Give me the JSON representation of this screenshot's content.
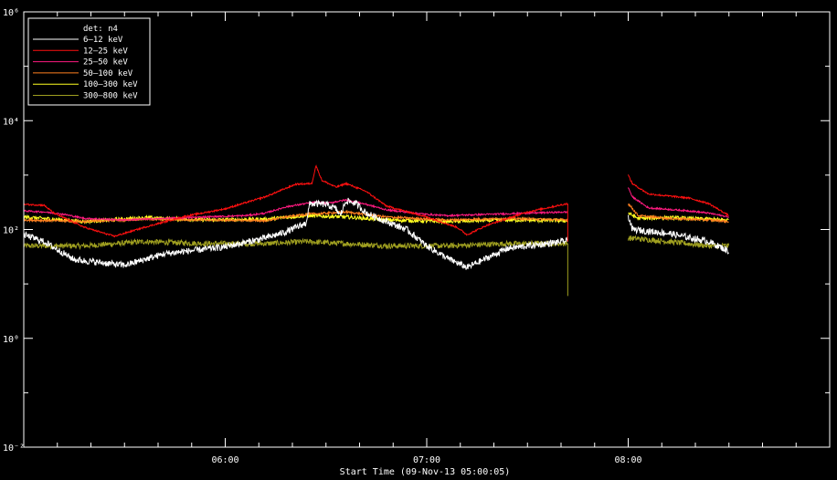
{
  "chart_data": {
    "type": "line",
    "title": "",
    "xlabel": "Start Time (09-Nov-13 05:00:05)",
    "ylabel": "",
    "x_unit": "hours since 05:00 UT",
    "xlim": [
      0,
      4
    ],
    "ylim": [
      0.01,
      1000000
    ],
    "y_scale": "log",
    "grid": false,
    "legend_placement": "top-left",
    "legend_title": "det: n4",
    "x_ticks": [
      {
        "value": 1,
        "label": "06:00"
      },
      {
        "value": 2,
        "label": "07:00"
      },
      {
        "value": 3,
        "label": "08:00"
      }
    ],
    "y_ticks": [
      {
        "value": 0.01,
        "label": "10⁻²"
      },
      {
        "value": 1,
        "label": "10⁰"
      },
      {
        "value": 100,
        "label": "10²"
      },
      {
        "value": 10000,
        "label": "10⁴"
      },
      {
        "value": 1000000,
        "label": "10⁶"
      }
    ],
    "series": [
      {
        "name": "6–12 keV",
        "color": "#ffffff",
        "noise": 0.06,
        "points": [
          [
            0,
            80
          ],
          [
            0.1,
            60
          ],
          [
            0.25,
            28
          ],
          [
            0.5,
            22
          ],
          [
            0.7,
            36
          ],
          [
            1.0,
            48
          ],
          [
            1.2,
            70
          ],
          [
            1.3,
            90
          ],
          [
            1.4,
            130
          ],
          [
            1.42,
            300
          ],
          [
            1.5,
            290
          ],
          [
            1.55,
            240
          ],
          [
            1.57,
            180
          ],
          [
            1.6,
            340
          ],
          [
            1.65,
            300
          ],
          [
            1.7,
            200
          ],
          [
            1.8,
            140
          ],
          [
            1.9,
            100
          ],
          [
            2.0,
            50
          ],
          [
            2.1,
            30
          ],
          [
            2.2,
            20
          ],
          [
            2.3,
            30
          ],
          [
            2.4,
            45
          ],
          [
            2.6,
            55
          ],
          [
            2.7,
            62
          ]
        ],
        "gap_points": [
          [
            3.0,
            180
          ],
          [
            3.02,
            100
          ],
          [
            3.2,
            85
          ],
          [
            3.4,
            60
          ],
          [
            3.5,
            40
          ],
          [
            3.5,
            30
          ]
        ]
      },
      {
        "name": "12–25 keV",
        "color": "#ff1010",
        "noise": 0.015,
        "points": [
          [
            0,
            290
          ],
          [
            0.1,
            280
          ],
          [
            0.15,
            200
          ],
          [
            0.3,
            110
          ],
          [
            0.45,
            75
          ],
          [
            0.6,
            110
          ],
          [
            0.8,
            175
          ],
          [
            1.0,
            240
          ],
          [
            1.2,
            400
          ],
          [
            1.35,
            680
          ],
          [
            1.43,
            700
          ],
          [
            1.45,
            1500
          ],
          [
            1.48,
            800
          ],
          [
            1.55,
            600
          ],
          [
            1.6,
            700
          ],
          [
            1.7,
            500
          ],
          [
            1.8,
            270
          ],
          [
            2.0,
            170
          ],
          [
            2.15,
            110
          ],
          [
            2.2,
            80
          ],
          [
            2.3,
            120
          ],
          [
            2.5,
            210
          ],
          [
            2.7,
            300
          ]
        ],
        "gap_points": [
          [
            3.0,
            1000
          ],
          [
            3.02,
            700
          ],
          [
            3.1,
            450
          ],
          [
            3.3,
            380
          ],
          [
            3.4,
            300
          ],
          [
            3.5,
            180
          ]
        ]
      },
      {
        "name": "25–50 keV",
        "color": "#ff1a80",
        "noise": 0.015,
        "points": [
          [
            0,
            220
          ],
          [
            0.1,
            210
          ],
          [
            0.2,
            190
          ],
          [
            0.3,
            160
          ],
          [
            0.5,
            150
          ],
          [
            0.7,
            160
          ],
          [
            0.9,
            170
          ],
          [
            1.1,
            180
          ],
          [
            1.2,
            200
          ],
          [
            1.3,
            260
          ],
          [
            1.4,
            300
          ],
          [
            1.45,
            320
          ],
          [
            1.5,
            300
          ],
          [
            1.6,
            350
          ],
          [
            1.7,
            290
          ],
          [
            1.8,
            230
          ],
          [
            2.0,
            190
          ],
          [
            2.1,
            180
          ],
          [
            2.3,
            190
          ],
          [
            2.5,
            200
          ],
          [
            2.7,
            210
          ]
        ],
        "gap_points": [
          [
            3.0,
            600
          ],
          [
            3.02,
            400
          ],
          [
            3.1,
            250
          ],
          [
            3.3,
            220
          ],
          [
            3.4,
            200
          ],
          [
            3.5,
            170
          ]
        ]
      },
      {
        "name": "50–100 keV",
        "color": "#ff8020",
        "noise": 0.02,
        "points": [
          [
            0,
            150
          ],
          [
            0.3,
            140
          ],
          [
            0.6,
            155
          ],
          [
            0.9,
            150
          ],
          [
            1.2,
            145
          ],
          [
            1.3,
            170
          ],
          [
            1.4,
            190
          ],
          [
            1.6,
            210
          ],
          [
            1.8,
            170
          ],
          [
            2.1,
            150
          ],
          [
            2.4,
            160
          ],
          [
            2.7,
            150
          ]
        ],
        "gap_points": [
          [
            3.0,
            300
          ],
          [
            3.05,
            180
          ],
          [
            3.2,
            160
          ],
          [
            3.4,
            150
          ],
          [
            3.5,
            140
          ]
        ]
      },
      {
        "name": "100–300 keV",
        "color": "#ffff20",
        "noise": 0.035,
        "points": [
          [
            0,
            170
          ],
          [
            0.3,
            140
          ],
          [
            0.6,
            165
          ],
          [
            0.9,
            150
          ],
          [
            1.2,
            155
          ],
          [
            1.4,
            180
          ],
          [
            1.6,
            170
          ],
          [
            1.8,
            150
          ],
          [
            2.1,
            140
          ],
          [
            2.4,
            150
          ],
          [
            2.7,
            145
          ]
        ],
        "gap_points": [
          [
            3.0,
            200
          ],
          [
            3.05,
            160
          ],
          [
            3.2,
            165
          ],
          [
            3.4,
            155
          ],
          [
            3.5,
            150
          ]
        ]
      },
      {
        "name": "300–800 keV",
        "color": "#a0a020",
        "noise": 0.05,
        "points": [
          [
            0,
            50
          ],
          [
            0.3,
            50
          ],
          [
            0.6,
            60
          ],
          [
            0.9,
            55
          ],
          [
            1.2,
            55
          ],
          [
            1.4,
            60
          ],
          [
            1.6,
            55
          ],
          [
            1.8,
            50
          ],
          [
            2.1,
            50
          ],
          [
            2.4,
            55
          ],
          [
            2.7,
            55
          ]
        ],
        "gap_points": [
          [
            3.0,
            70
          ],
          [
            3.2,
            60
          ],
          [
            3.4,
            50
          ],
          [
            3.5,
            50
          ]
        ]
      }
    ]
  }
}
